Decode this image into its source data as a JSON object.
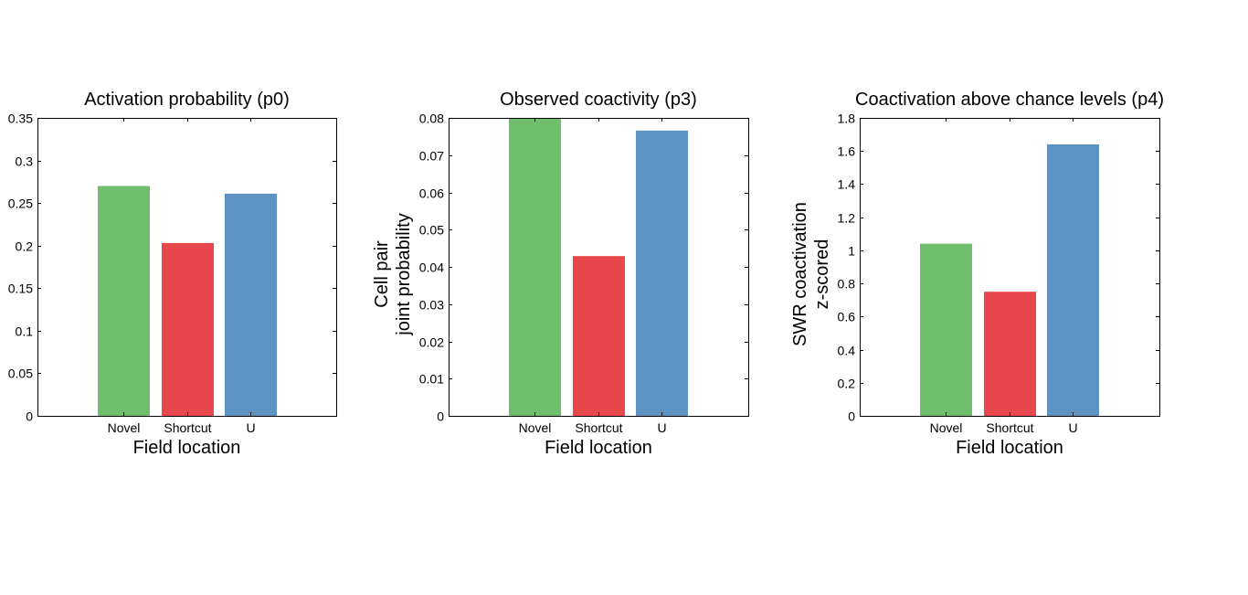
{
  "chart_data": [
    {
      "type": "bar",
      "title": "Activation probability (p0)",
      "xlabel": "Field location",
      "ylabel": [],
      "categories": [
        "Novel",
        "Shortcut",
        "U"
      ],
      "values": [
        0.27,
        0.203,
        0.261
      ],
      "colors": [
        "#6fbe6b",
        "#e8474b",
        "#5c93c2"
      ],
      "ylim": [
        0,
        0.35
      ],
      "yticks": [
        0,
        0.05,
        0.1,
        0.15,
        0.2,
        0.25,
        0.3,
        0.35
      ],
      "ytick_labels": [
        "0",
        "0.05",
        "0.1",
        "0.15",
        "0.2",
        "0.25",
        "0.3",
        "0.35"
      ],
      "grid": false
    },
    {
      "type": "bar",
      "title": "Observed coactivity (p3)",
      "xlabel": "Field location",
      "ylabel": [
        "Cell pair",
        "joint probability"
      ],
      "categories": [
        "Novel",
        "Shortcut",
        "U"
      ],
      "values": [
        0.08,
        0.0429,
        0.0766
      ],
      "colors": [
        "#6fbe6b",
        "#e8474b",
        "#5c93c2"
      ],
      "ylim": [
        0,
        0.08
      ],
      "yticks": [
        0,
        0.01,
        0.02,
        0.03,
        0.04,
        0.05,
        0.06,
        0.07,
        0.08
      ],
      "ytick_labels": [
        "0",
        "0.01",
        "0.02",
        "0.03",
        "0.04",
        "0.05",
        "0.06",
        "0.07",
        "0.08"
      ],
      "grid": false
    },
    {
      "type": "bar",
      "title": "Coactivation above chance levels (p4)",
      "xlabel": "Field location",
      "ylabel": [
        "SWR coactivation",
        "z-scored"
      ],
      "categories": [
        "Novel",
        "Shortcut",
        "U"
      ],
      "values": [
        1.04,
        0.75,
        1.64
      ],
      "colors": [
        "#6fbe6b",
        "#e8474b",
        "#5c93c2"
      ],
      "ylim": [
        0,
        1.8
      ],
      "yticks": [
        0,
        0.2,
        0.4,
        0.6,
        0.8,
        1,
        1.2,
        1.4,
        1.6,
        1.8
      ],
      "ytick_labels": [
        "0",
        "0.2",
        "0.4",
        "0.6",
        "0.8",
        "1",
        "1.2",
        "1.4",
        "1.6",
        "1.8"
      ],
      "grid": false
    }
  ]
}
